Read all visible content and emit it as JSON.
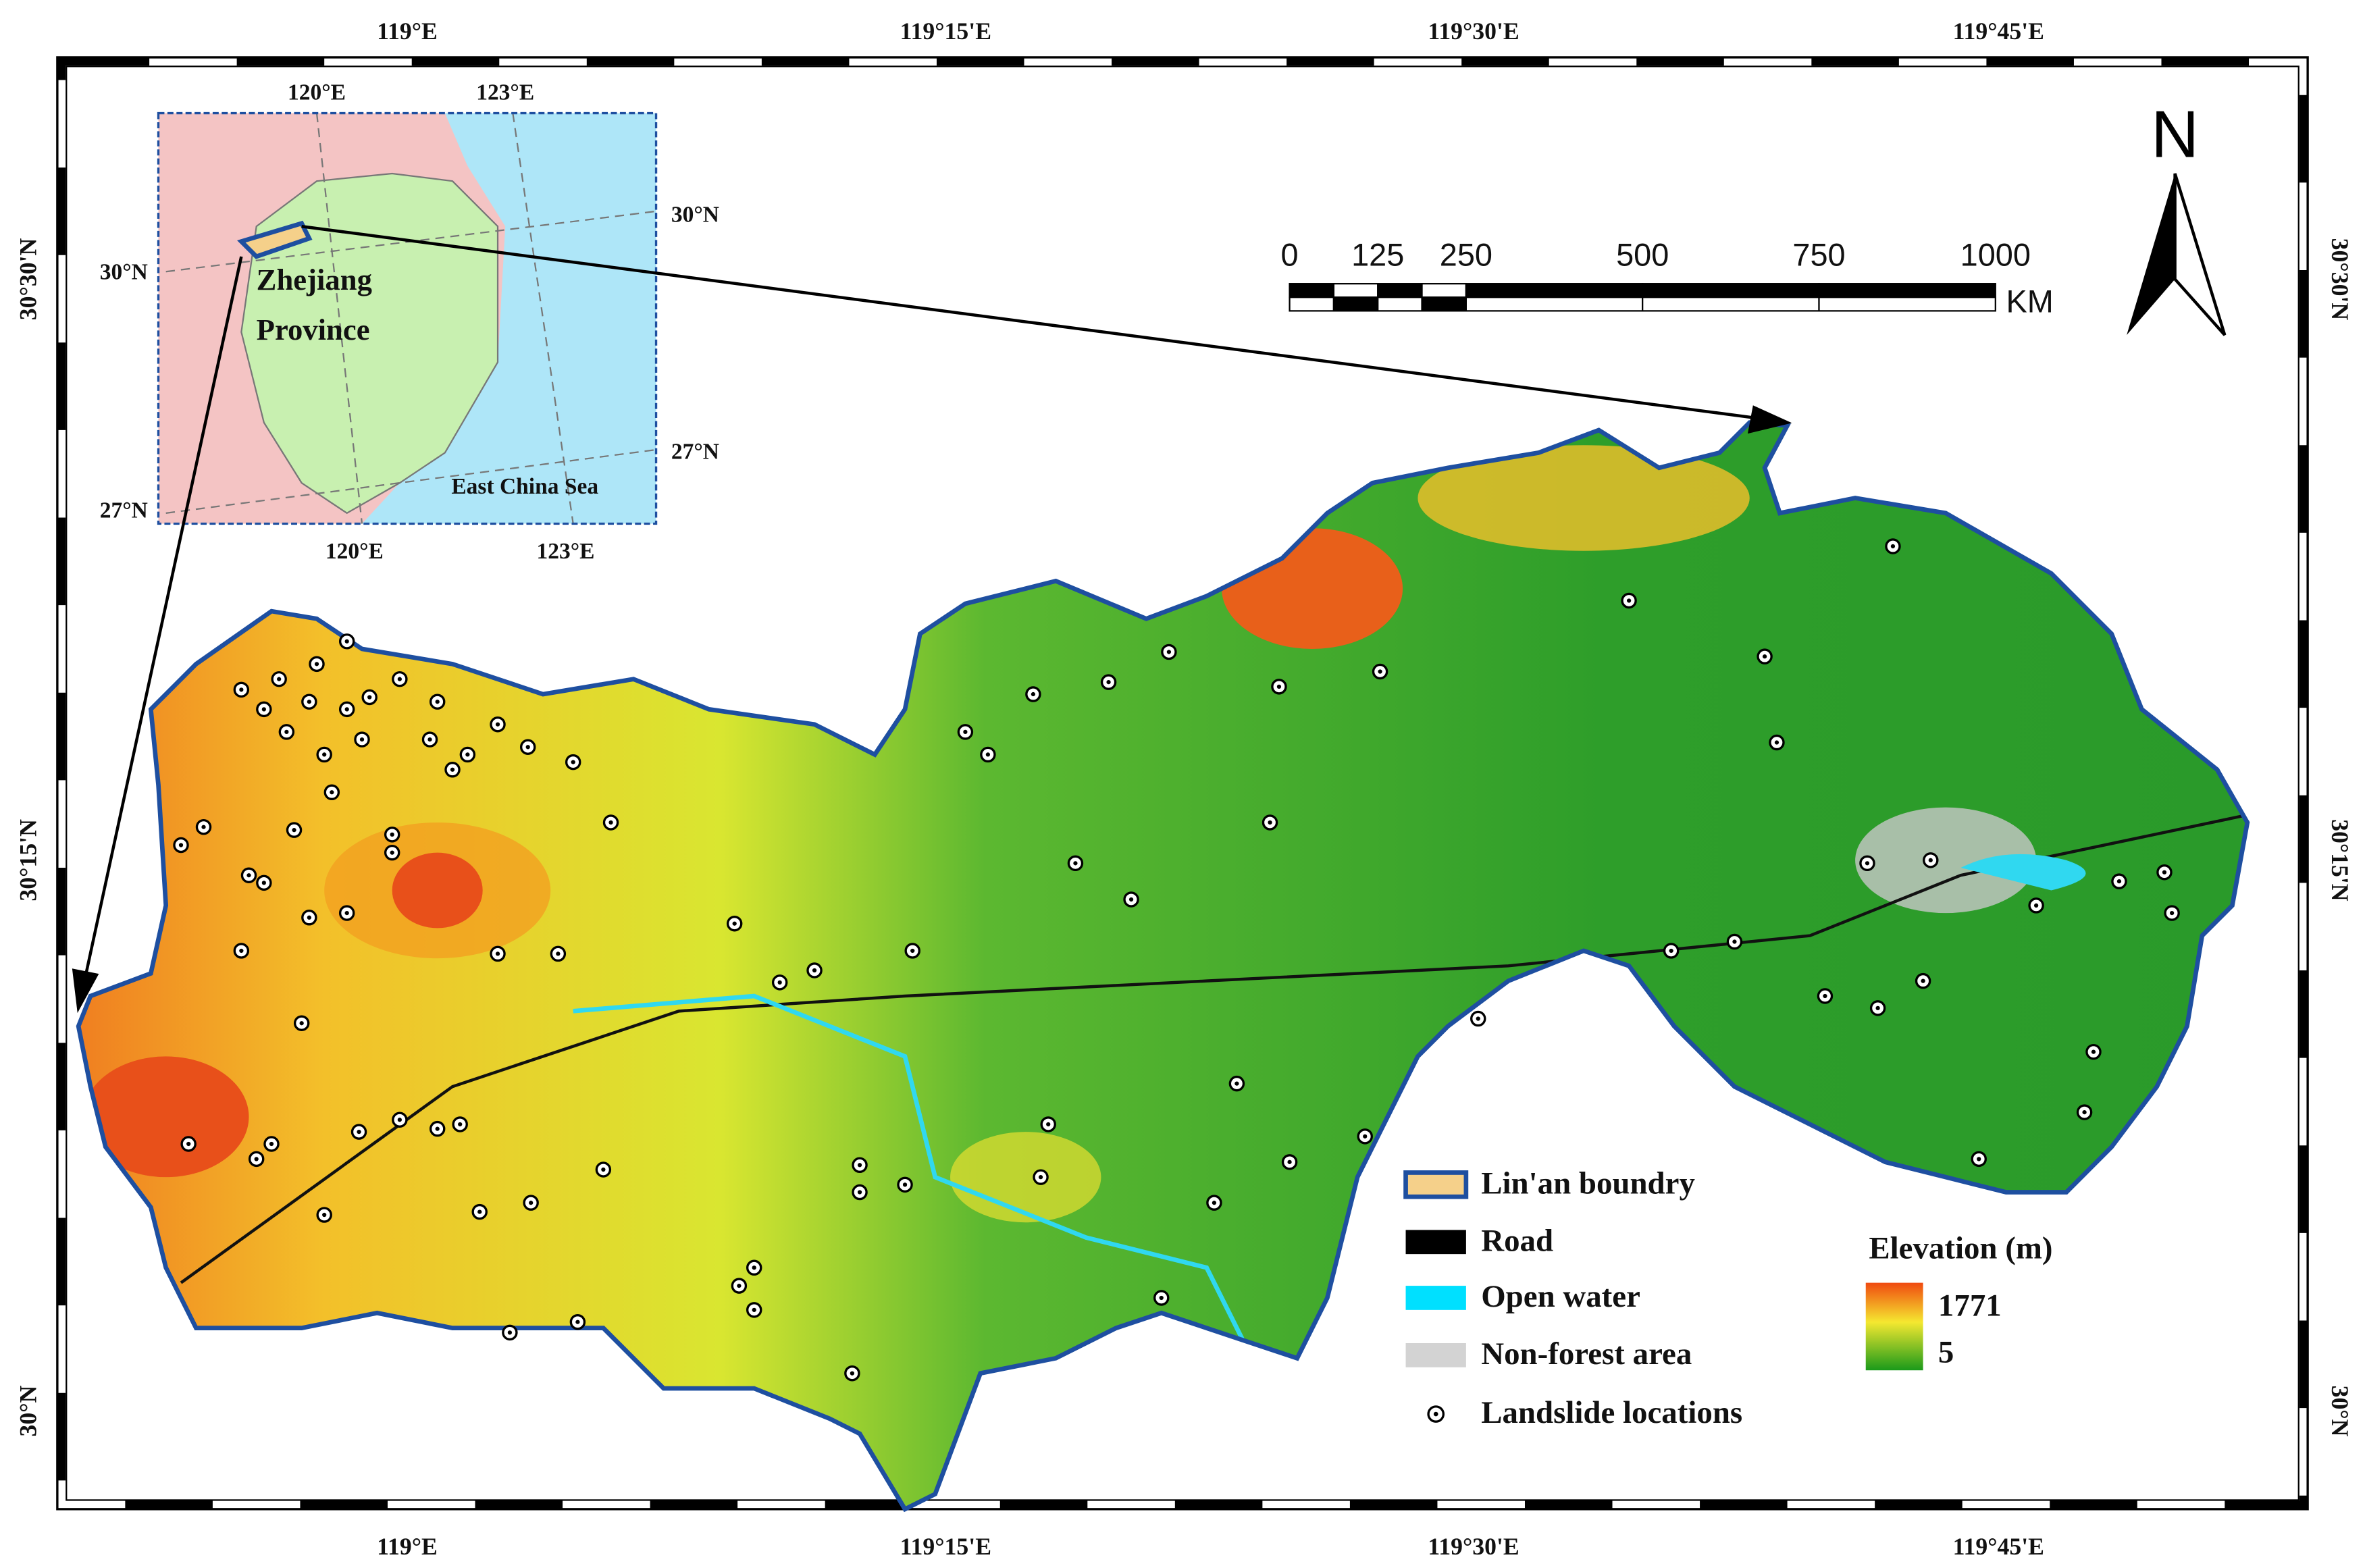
{
  "frame": {
    "top_labels": [
      "119°E",
      "119°15'E",
      "119°30'E",
      "119°45'E"
    ],
    "bottom_labels": [
      "119°E",
      "119°15'E",
      "119°30'E",
      "119°45'E"
    ],
    "left_labels": [
      "30°30'N",
      "30°15'N",
      "30°N"
    ],
    "right_labels": [
      "30°30'N",
      "30°15'N",
      "30°N"
    ]
  },
  "inset": {
    "lon_labels_top": [
      "120°E",
      "123°E"
    ],
    "lon_labels_bottom": [
      "120°E",
      "123°E"
    ],
    "lat_labels_right": [
      "30°N",
      "27°N"
    ],
    "lat_labels_left": [
      "30°N",
      "27°N"
    ],
    "province": [
      "Zhejiang",
      "Province"
    ],
    "sea": "East China Sea"
  },
  "scale_bar": {
    "ticks": [
      0,
      125,
      250,
      500,
      750,
      1000
    ],
    "unit": "KM"
  },
  "north": "N",
  "legend": {
    "items": [
      "Lin'an boundry",
      "Road",
      "Open water",
      "Non-forest area",
      "Landslide locations"
    ],
    "elevation": {
      "title": "Elevation (m)",
      "max": 1771,
      "min": 5
    }
  }
}
